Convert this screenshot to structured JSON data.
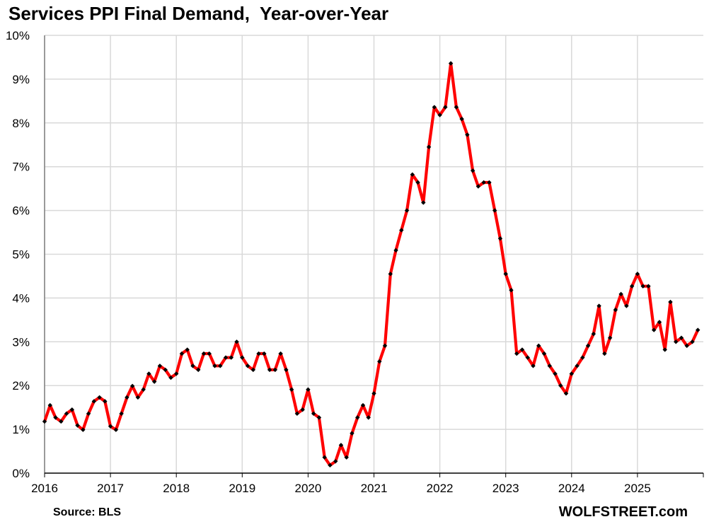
{
  "chart_data": {
    "type": "line",
    "title": "Services PPI Final Demand,  Year-over-Year",
    "source": "Source: BLS",
    "brand": "WOLFSTREET.com",
    "ylim": [
      0,
      10
    ],
    "xlim": [
      "2016-01",
      "2026-01"
    ],
    "y_ticks": [
      "0%",
      "1%",
      "2%",
      "3%",
      "4%",
      "5%",
      "6%",
      "7%",
      "8%",
      "9%",
      "10%"
    ],
    "x_ticks": [
      "2016",
      "2017",
      "2018",
      "2019",
      "2020",
      "2021",
      "2022",
      "2023",
      "2024",
      "2025"
    ],
    "grid": true,
    "line_color": "#ff0000",
    "marker_color": "#000000",
    "series": [
      {
        "start": "2016-01",
        "values": [
          1.18,
          1.55,
          1.27,
          1.18,
          1.36,
          1.45,
          1.09,
          0.99,
          1.36,
          1.64,
          1.73,
          1.64,
          1.07,
          0.99,
          1.36,
          1.73,
          1.99,
          1.73,
          1.91,
          2.27,
          2.09,
          2.45,
          2.36,
          2.18,
          2.27,
          2.73,
          2.82,
          2.45,
          2.36,
          2.73,
          2.73,
          2.45,
          2.45,
          2.64,
          2.64,
          3.0,
          2.64,
          2.45,
          2.36,
          2.73,
          2.73,
          2.36,
          2.36,
          2.73,
          2.36,
          1.91,
          1.36,
          1.45,
          1.91,
          1.36,
          1.27,
          0.36,
          0.18,
          0.27,
          0.64,
          0.36,
          0.91,
          1.27,
          1.55,
          1.27,
          1.82,
          2.55,
          2.91,
          4.55,
          5.09,
          5.55,
          6.0,
          6.82,
          6.64,
          6.18,
          7.45,
          8.36,
          8.18,
          8.36,
          9.36,
          8.36,
          8.09,
          7.73,
          6.91,
          6.55,
          6.64,
          6.64,
          6.0,
          5.36,
          4.55,
          4.18,
          2.73,
          2.82,
          2.64,
          2.45,
          2.91,
          2.73,
          2.45,
          2.27,
          2.0,
          1.82,
          2.27,
          2.45,
          2.64,
          2.91,
          3.18,
          3.82,
          2.73,
          3.09,
          3.73,
          4.09,
          3.82,
          4.27,
          4.55,
          4.27,
          4.27,
          3.27,
          3.45,
          2.82,
          3.91,
          3.0,
          3.09,
          2.91,
          3.0,
          3.27
        ]
      }
    ]
  }
}
